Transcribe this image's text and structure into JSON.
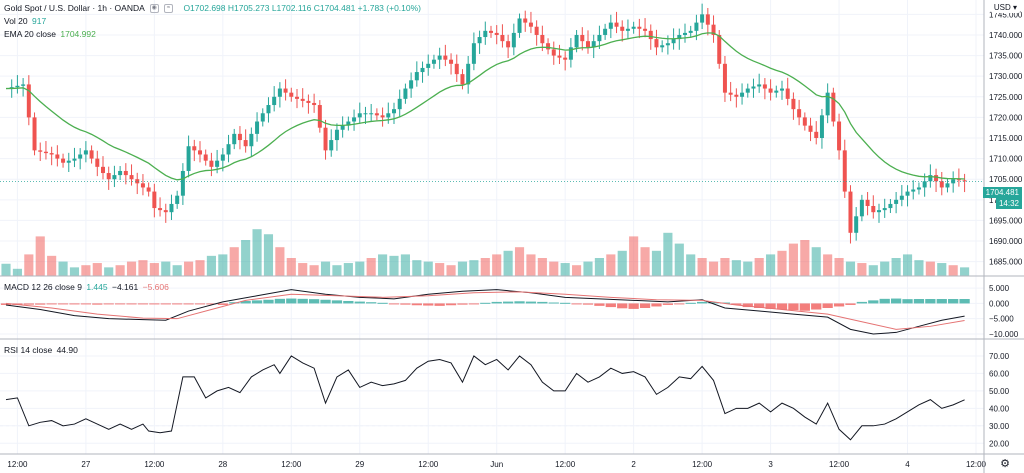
{
  "header": {
    "symbol": "Gold Spot / U.S. Dollar · 1h · OANDA",
    "ohlc": "O1702.698  H1705.273  L1702.116  C1704.481  +1.783 (+0.10%)",
    "vol_label": "Vol 20",
    "vol_value": "917",
    "ema_label": "EMA 20 close",
    "ema_value": "1704.992",
    "macd_label": "MACD 12 26 close 9",
    "macd_values": [
      "1.445",
      "−4.161",
      "−5.606"
    ],
    "rsi_label": "RSI 14 close",
    "rsi_value": "44.90",
    "currency": "USD",
    "last_price": "1704.481",
    "countdown": "14:32"
  },
  "colors": {
    "up": "#26a69a",
    "down": "#ef5350",
    "ema": "#4caf50",
    "macd": "#131722",
    "signal": "#e57373",
    "rsi": "#131722",
    "hist_up": "#26a69a",
    "hist_down": "#ef5350"
  },
  "chart_data": [
    {
      "type": "candlestick",
      "title": "Gold Spot / U.S. Dollar · 1h · OANDA",
      "ylim": [
        1682,
        1748
      ],
      "y_ticks": [
        1685,
        1690,
        1695,
        1700,
        1705,
        1710,
        1715,
        1720,
        1725,
        1730,
        1735,
        1740,
        1745
      ],
      "x_ticks": [
        {
          "label": "12:00",
          "t": 2
        },
        {
          "label": "27",
          "t": 14
        },
        {
          "label": "12:00",
          "t": 26
        },
        {
          "label": "28",
          "t": 38
        },
        {
          "label": "12:00",
          "t": 50
        },
        {
          "label": "29",
          "t": 62
        },
        {
          "label": "12:00",
          "t": 74
        },
        {
          "label": "Jun",
          "t": 86
        },
        {
          "label": "12:00",
          "t": 98
        },
        {
          "label": "2",
          "t": 110
        },
        {
          "label": "12:00",
          "t": 122
        },
        {
          "label": "3",
          "t": 134
        },
        {
          "label": "12:00",
          "t": 146
        },
        {
          "label": "4",
          "t": 158
        },
        {
          "label": "12:00",
          "t": 170
        }
      ],
      "close_path": [
        [
          0,
          1727
        ],
        [
          3,
          1728
        ],
        [
          5,
          1712
        ],
        [
          8,
          1711
        ],
        [
          10,
          1709
        ],
        [
          12,
          1710
        ],
        [
          14,
          1712
        ],
        [
          16,
          1708
        ],
        [
          18,
          1705
        ],
        [
          20,
          1707
        ],
        [
          22,
          1705
        ],
        [
          25,
          1702
        ],
        [
          26,
          1698
        ],
        [
          28,
          1697
        ],
        [
          30,
          1701
        ],
        [
          32,
          1713
        ],
        [
          34,
          1711
        ],
        [
          36,
          1708
        ],
        [
          38,
          1711
        ],
        [
          40,
          1716
        ],
        [
          42,
          1713
        ],
        [
          44,
          1719
        ],
        [
          46,
          1723
        ],
        [
          48,
          1727
        ],
        [
          50,
          1725
        ],
        [
          52,
          1724
        ],
        [
          54,
          1723
        ],
        [
          56,
          1712
        ],
        [
          58,
          1717
        ],
        [
          60,
          1719
        ],
        [
          62,
          1721
        ],
        [
          64,
          1721
        ],
        [
          66,
          1720
        ],
        [
          68,
          1722
        ],
        [
          70,
          1727
        ],
        [
          72,
          1731
        ],
        [
          74,
          1733
        ],
        [
          76,
          1735
        ],
        [
          78,
          1733
        ],
        [
          80,
          1728
        ],
        [
          82,
          1738
        ],
        [
          84,
          1741
        ],
        [
          86,
          1740
        ],
        [
          88,
          1737
        ],
        [
          90,
          1744
        ],
        [
          92,
          1742
        ],
        [
          94,
          1738
        ],
        [
          96,
          1735
        ],
        [
          98,
          1734
        ],
        [
          100,
          1740
        ],
        [
          102,
          1737
        ],
        [
          104,
          1740
        ],
        [
          106,
          1743
        ],
        [
          108,
          1741
        ],
        [
          110,
          1742
        ],
        [
          112,
          1741
        ],
        [
          114,
          1737
        ],
        [
          116,
          1738
        ],
        [
          118,
          1740
        ],
        [
          120,
          1741
        ],
        [
          122,
          1745
        ],
        [
          124,
          1740
        ],
        [
          126,
          1726
        ],
        [
          128,
          1725
        ],
        [
          130,
          1727
        ],
        [
          132,
          1728
        ],
        [
          134,
          1726
        ],
        [
          136,
          1727
        ],
        [
          138,
          1722
        ],
        [
          140,
          1718
        ],
        [
          142,
          1715
        ],
        [
          144,
          1726
        ],
        [
          146,
          1712
        ],
        [
          148,
          1692
        ],
        [
          150,
          1700
        ],
        [
          152,
          1697
        ],
        [
          154,
          1698
        ],
        [
          156,
          1700
        ],
        [
          158,
          1702
        ],
        [
          160,
          1703
        ],
        [
          162,
          1706
        ],
        [
          164,
          1703
        ],
        [
          166,
          1705
        ],
        [
          168,
          1704.481
        ]
      ]
    },
    {
      "type": "bar",
      "title": "Vol 20",
      "ylabel": "",
      "note": "volume histogram overlaid at bottom of price pane, relative heights 0-1",
      "values": [
        0.17,
        0.1,
        0.3,
        0.55,
        0.28,
        0.2,
        0.12,
        0.15,
        0.18,
        0.12,
        0.15,
        0.2,
        0.22,
        0.18,
        0.2,
        0.15,
        0.2,
        0.22,
        0.28,
        0.3,
        0.4,
        0.5,
        0.65,
        0.58,
        0.4,
        0.25,
        0.18,
        0.15,
        0.2,
        0.15,
        0.18,
        0.2,
        0.25,
        0.3,
        0.28,
        0.3,
        0.22,
        0.2,
        0.18,
        0.15,
        0.2,
        0.22,
        0.25,
        0.3,
        0.35,
        0.4,
        0.3,
        0.25,
        0.2,
        0.18,
        0.15,
        0.2,
        0.25,
        0.3,
        0.35,
        0.55,
        0.4,
        0.35,
        0.6,
        0.45,
        0.3,
        0.25,
        0.2,
        0.25,
        0.22,
        0.2,
        0.25,
        0.3,
        0.35,
        0.45,
        0.5,
        0.4,
        0.3,
        0.25,
        0.2,
        0.18,
        0.15,
        0.2,
        0.25,
        0.3,
        0.22,
        0.2,
        0.18,
        0.15,
        0.12,
        0.1,
        0.15
      ]
    },
    {
      "type": "line",
      "title": "MACD 12 26 close 9",
      "ylim": [
        -11,
        8
      ],
      "y_ticks": [
        5.0,
        0.0,
        -5.0,
        -10.0
      ],
      "y_tick_labels": [
        "5.000",
        "0.000",
        "−5.000",
        "−10.000"
      ],
      "macd": [
        [
          0,
          -0.5
        ],
        [
          6,
          -2.0
        ],
        [
          12,
          -4.0
        ],
        [
          18,
          -5.0
        ],
        [
          24,
          -5.3
        ],
        [
          28,
          -5.5
        ],
        [
          32,
          -2.5
        ],
        [
          38,
          0.5
        ],
        [
          44,
          2.5
        ],
        [
          50,
          4.5
        ],
        [
          56,
          3.0
        ],
        [
          62,
          2.0
        ],
        [
          68,
          1.5
        ],
        [
          74,
          3.0
        ],
        [
          80,
          4.0
        ],
        [
          86,
          4.5
        ],
        [
          92,
          3.5
        ],
        [
          98,
          2.0
        ],
        [
          104,
          1.5
        ],
        [
          110,
          1.0
        ],
        [
          116,
          0.5
        ],
        [
          122,
          1.2
        ],
        [
          126,
          -1.5
        ],
        [
          132,
          -2.5
        ],
        [
          138,
          -3.5
        ],
        [
          144,
          -4.5
        ],
        [
          148,
          -8.5
        ],
        [
          152,
          -10.0
        ],
        [
          156,
          -9.5
        ],
        [
          160,
          -7.5
        ],
        [
          164,
          -5.5
        ],
        [
          168,
          -4.161
        ]
      ],
      "signal": [
        [
          0,
          0.0
        ],
        [
          8,
          -1.5
        ],
        [
          16,
          -3.5
        ],
        [
          24,
          -4.8
        ],
        [
          30,
          -5.0
        ],
        [
          36,
          -2.0
        ],
        [
          42,
          1.0
        ],
        [
          50,
          3.0
        ],
        [
          58,
          2.5
        ],
        [
          66,
          2.0
        ],
        [
          74,
          2.5
        ],
        [
          82,
          3.5
        ],
        [
          90,
          3.8
        ],
        [
          98,
          3.0
        ],
        [
          106,
          2.0
        ],
        [
          114,
          1.2
        ],
        [
          122,
          1.0
        ],
        [
          128,
          -0.5
        ],
        [
          136,
          -2.0
        ],
        [
          144,
          -3.5
        ],
        [
          150,
          -6.0
        ],
        [
          156,
          -8.5
        ],
        [
          162,
          -7.5
        ],
        [
          168,
          -5.606
        ]
      ],
      "hist": [
        -0.5,
        -0.5,
        -0.4,
        -0.4,
        -0.3,
        -0.2,
        -0.2,
        -0.3,
        -0.4,
        -0.3,
        -0.2,
        -0.2,
        -0.3,
        -0.2,
        -0.2,
        -0.1,
        -0.1,
        -0.2,
        -0.3,
        -0.5,
        0.4,
        0.8,
        1.0,
        1.2,
        1.5,
        1.6,
        1.5,
        1.4,
        1.2,
        1.0,
        0.8,
        0.6,
        0.4,
        0.2,
        -0.2,
        -0.4,
        -0.6,
        -0.7,
        -0.8,
        -0.6,
        -0.4,
        -0.2,
        0.2,
        0.5,
        0.6,
        0.7,
        0.6,
        0.5,
        0.3,
        0.2,
        -0.2,
        -0.4,
        -0.8,
        -1.2,
        -1.6,
        -1.8,
        -1.5,
        -1.0,
        -0.5,
        -0.2,
        0.2,
        0.5,
        0.4,
        0.3,
        -0.5,
        -1.2,
        -1.5,
        -1.8,
        -2.0,
        -2.2,
        -2.4,
        -2.0,
        -1.5,
        -1.0,
        -0.5,
        0.5,
        1.0,
        1.5,
        1.6,
        1.4,
        1.445,
        1.445,
        1.445,
        1.445,
        1.445,
        1.445,
        1.445
      ]
    },
    {
      "type": "line",
      "title": "RSI 14 close",
      "ylim": [
        15,
        78
      ],
      "y_ticks": [
        20,
        30,
        40,
        50,
        60,
        70
      ],
      "y_tick_labels": [
        "20.00",
        "30.00",
        "40.00",
        "50.00",
        "60.00",
        "70.00"
      ],
      "bands": [
        70,
        30
      ],
      "values": [
        [
          0,
          45
        ],
        [
          2,
          46
        ],
        [
          4,
          30
        ],
        [
          6,
          32
        ],
        [
          8,
          33
        ],
        [
          10,
          30
        ],
        [
          12,
          31
        ],
        [
          14,
          34
        ],
        [
          16,
          31
        ],
        [
          18,
          28
        ],
        [
          20,
          31
        ],
        [
          22,
          28
        ],
        [
          24,
          31
        ],
        [
          25,
          27
        ],
        [
          27,
          26
        ],
        [
          29,
          27
        ],
        [
          31,
          58
        ],
        [
          33,
          58
        ],
        [
          35,
          46
        ],
        [
          37,
          50
        ],
        [
          39,
          52
        ],
        [
          41,
          49
        ],
        [
          43,
          58
        ],
        [
          45,
          62
        ],
        [
          47,
          65
        ],
        [
          48,
          60
        ],
        [
          50,
          70
        ],
        [
          52,
          66
        ],
        [
          54,
          63
        ],
        [
          56,
          43
        ],
        [
          58,
          58
        ],
        [
          60,
          62
        ],
        [
          62,
          52
        ],
        [
          64,
          55
        ],
        [
          66,
          53
        ],
        [
          68,
          54
        ],
        [
          70,
          56
        ],
        [
          72,
          63
        ],
        [
          74,
          67
        ],
        [
          76,
          68
        ],
        [
          78,
          66
        ],
        [
          80,
          55
        ],
        [
          82,
          70
        ],
        [
          84,
          65
        ],
        [
          86,
          68
        ],
        [
          88,
          62
        ],
        [
          90,
          70
        ],
        [
          92,
          65
        ],
        [
          94,
          55
        ],
        [
          96,
          50
        ],
        [
          98,
          50
        ],
        [
          100,
          60
        ],
        [
          102,
          55
        ],
        [
          104,
          58
        ],
        [
          106,
          63
        ],
        [
          108,
          60
        ],
        [
          110,
          61
        ],
        [
          112,
          58
        ],
        [
          114,
          48
        ],
        [
          116,
          52
        ],
        [
          118,
          58
        ],
        [
          120,
          57
        ],
        [
          122,
          64
        ],
        [
          124,
          56
        ],
        [
          126,
          37
        ],
        [
          128,
          40
        ],
        [
          130,
          40
        ],
        [
          132,
          43
        ],
        [
          134,
          38
        ],
        [
          136,
          43
        ],
        [
          138,
          40
        ],
        [
          140,
          35
        ],
        [
          142,
          31
        ],
        [
          144,
          43
        ],
        [
          146,
          28
        ],
        [
          148,
          22
        ],
        [
          150,
          30
        ],
        [
          152,
          30
        ],
        [
          154,
          31
        ],
        [
          156,
          34
        ],
        [
          158,
          38
        ],
        [
          160,
          42
        ],
        [
          162,
          45
        ],
        [
          164,
          40
        ],
        [
          166,
          42
        ],
        [
          168,
          44.9
        ]
      ]
    }
  ]
}
